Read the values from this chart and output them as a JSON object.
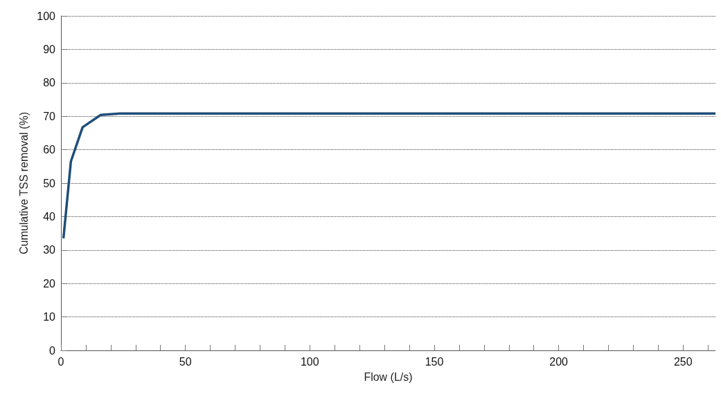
{
  "chart_data": {
    "type": "line",
    "xlabel": "Flow (L/s)",
    "ylabel": "Cumulative TSS removal (%)",
    "x": [
      1,
      4,
      8.7,
      16,
      23.7,
      263
    ],
    "series": [
      {
        "color": "#1f4e79",
        "values": [
          33.5,
          56.5,
          66.7,
          70.4,
          70.8,
          70.8
        ]
      }
    ],
    "xlim": [
      0,
      263
    ],
    "xticks": [
      0,
      {
        "value": 10,
        "label": null
      },
      {
        "value": 20,
        "label": null
      },
      {
        "value": 30,
        "label": null
      },
      {
        "value": 40,
        "label": null
      },
      50,
      {
        "value": 60,
        "label": null
      },
      {
        "value": 70,
        "label": null
      },
      {
        "value": 80,
        "label": null
      },
      {
        "value": 90,
        "label": null
      },
      100,
      {
        "value": 110,
        "label": null
      },
      {
        "value": 120,
        "label": null
      },
      {
        "value": 130,
        "label": null
      },
      {
        "value": 140,
        "label": null
      },
      150,
      {
        "value": 160,
        "label": null
      },
      {
        "value": 170,
        "label": null
      },
      {
        "value": 180,
        "label": null
      },
      {
        "value": 190,
        "label": null
      },
      200,
      {
        "value": 210,
        "label": null
      },
      {
        "value": 220,
        "label": null
      },
      {
        "value": 230,
        "label": null
      },
      {
        "value": 240,
        "label": null
      },
      250,
      {
        "value": 260,
        "label": null
      }
    ],
    "ylim": [
      0,
      100
    ],
    "yticks": [
      0,
      10,
      20,
      30,
      40,
      50,
      60,
      70,
      80,
      90,
      100
    ],
    "grid": "y",
    "line_style": "solid",
    "marker": "none"
  }
}
